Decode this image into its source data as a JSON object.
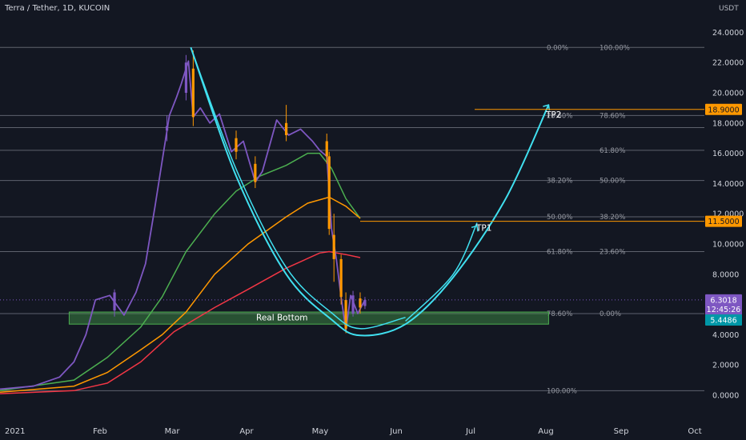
{
  "symbol": "Terra / Tether, 1D, KUCOIN",
  "currency": "USDT",
  "colors": {
    "background": "#131722",
    "candle_up": "#7e57c2",
    "candle_down": "#ff9800",
    "ma_fast": "#4caf50",
    "ma_mid": "#ff9800",
    "ma_slow": "#f23645",
    "arc": "#40e0f0",
    "zone": "#4caf50",
    "tp": "#ff9800",
    "last_price": "#7e57c2",
    "ref_price": "#0097a7"
  },
  "chart_data": {
    "type": "candlestick",
    "ylim": [
      -1,
      25
    ],
    "yticks": [
      "0.0000",
      "2.0000",
      "4.0000",
      "6.0000",
      "8.0000",
      "10.0000",
      "12.0000",
      "14.0000",
      "16.0000",
      "18.0000",
      "20.0000",
      "22.0000",
      "24.0000"
    ],
    "time_labels": [
      "2021",
      "Feb",
      "Mar",
      "Apr",
      "May",
      "Jun",
      "Jul",
      "Aug",
      "Sep",
      "Oct"
    ],
    "price_line": {
      "points": [
        [
          "2021-01-01",
          0.4
        ],
        [
          "2021-01-15",
          0.6
        ],
        [
          "2021-01-26",
          1.2
        ],
        [
          "2021-02-01",
          2.2
        ],
        [
          "2021-02-06",
          4.0
        ],
        [
          "2021-02-10",
          6.3
        ],
        [
          "2021-02-16",
          6.6
        ],
        [
          "2021-02-22",
          5.3
        ],
        [
          "2021-02-27",
          6.8
        ],
        [
          "2021-03-03",
          8.7
        ],
        [
          "2021-03-07",
          12.5
        ],
        [
          "2021-03-10",
          15.5
        ],
        [
          "2021-03-13",
          18.5
        ],
        [
          "2021-03-16",
          19.7
        ],
        [
          "2021-03-18",
          20.6
        ],
        [
          "2021-03-21",
          22.1
        ],
        [
          "2021-03-23",
          18.4
        ],
        [
          "2021-03-26",
          19.0
        ],
        [
          "2021-03-30",
          18.0
        ],
        [
          "2021-04-03",
          18.6
        ],
        [
          "2021-04-08",
          16.1
        ],
        [
          "2021-04-13",
          16.8
        ],
        [
          "2021-04-18",
          14.1
        ],
        [
          "2021-04-21",
          14.8
        ],
        [
          "2021-04-27",
          18.2
        ],
        [
          "2021-05-02",
          17.2
        ],
        [
          "2021-05-07",
          17.6
        ],
        [
          "2021-05-12",
          16.8
        ],
        [
          "2021-05-15",
          16.2
        ],
        [
          "2021-05-18",
          15.8
        ],
        [
          "2021-05-20",
          11.0
        ],
        [
          "2021-05-22",
          9.0
        ],
        [
          "2021-05-24",
          6.5
        ],
        [
          "2021-05-26",
          4.3
        ],
        [
          "2021-05-28",
          6.6
        ],
        [
          "2021-05-31",
          5.4
        ],
        [
          "2021-06-03",
          6.3
        ]
      ]
    },
    "candles": [
      {
        "date": "2021-02-18",
        "open": 5.6,
        "high": 7.0,
        "low": 5.2,
        "close": 6.8
      },
      {
        "date": "2021-03-12",
        "open": 17.5,
        "high": 18.5,
        "low": 16.8,
        "close": 17.8
      },
      {
        "date": "2021-03-20",
        "open": 20.0,
        "high": 22.5,
        "low": 19.5,
        "close": 22.0
      },
      {
        "date": "2021-03-23",
        "open": 21.6,
        "high": 22.8,
        "low": 17.8,
        "close": 18.4
      },
      {
        "date": "2021-04-10",
        "open": 17.0,
        "high": 17.5,
        "low": 15.6,
        "close": 16.1
      },
      {
        "date": "2021-04-18",
        "open": 15.3,
        "high": 15.8,
        "low": 13.7,
        "close": 14.1
      },
      {
        "date": "2021-05-01",
        "open": 18.0,
        "high": 19.2,
        "low": 16.8,
        "close": 17.2
      },
      {
        "date": "2021-05-18",
        "open": 16.8,
        "high": 17.3,
        "low": 15.3,
        "close": 15.8
      },
      {
        "date": "2021-05-19",
        "open": 15.8,
        "high": 16.1,
        "low": 10.6,
        "close": 11.0
      },
      {
        "date": "2021-05-21",
        "open": 10.6,
        "high": 12.0,
        "low": 7.5,
        "close": 9.0
      },
      {
        "date": "2021-05-24",
        "open": 9.0,
        "high": 9.3,
        "low": 6.0,
        "close": 6.5
      },
      {
        "date": "2021-05-26",
        "open": 6.3,
        "high": 6.8,
        "low": 4.1,
        "close": 4.4
      },
      {
        "date": "2021-05-29",
        "open": 5.4,
        "high": 6.9,
        "low": 5.2,
        "close": 6.6
      },
      {
        "date": "2021-06-01",
        "open": 6.4,
        "high": 6.8,
        "low": 5.4,
        "close": 5.8
      },
      {
        "date": "2021-06-03",
        "open": 5.9,
        "high": 6.5,
        "low": 5.7,
        "close": 6.3
      }
    ],
    "moving_averages": [
      {
        "points": [
          [
            "2021-01-01",
            0.3
          ],
          [
            "2021-02-01",
            1.0
          ],
          [
            "2021-02-15",
            2.5
          ],
          [
            "2021-03-01",
            4.5
          ],
          [
            "2021-03-10",
            6.5
          ],
          [
            "2021-03-20",
            9.5
          ],
          [
            "2021-04-01",
            12.0
          ],
          [
            "2021-04-10",
            13.5
          ],
          [
            "2021-04-20",
            14.5
          ],
          [
            "2021-05-01",
            15.2
          ],
          [
            "2021-05-10",
            16.0
          ],
          [
            "2021-05-15",
            16.0
          ],
          [
            "2021-05-20",
            15.0
          ],
          [
            "2021-05-26",
            13.0
          ],
          [
            "2021-06-01",
            11.7
          ]
        ]
      },
      {
        "points": [
          [
            "2021-01-01",
            0.2
          ],
          [
            "2021-02-01",
            0.6
          ],
          [
            "2021-02-15",
            1.5
          ],
          [
            "2021-03-01",
            3.0
          ],
          [
            "2021-03-10",
            4.0
          ],
          [
            "2021-03-20",
            5.5
          ],
          [
            "2021-04-01",
            8.0
          ],
          [
            "2021-04-15",
            10.0
          ],
          [
            "2021-05-01",
            11.8
          ],
          [
            "2021-05-10",
            12.7
          ],
          [
            "2021-05-19",
            13.1
          ],
          [
            "2021-05-26",
            12.5
          ],
          [
            "2021-06-01",
            11.7
          ]
        ]
      },
      {
        "points": [
          [
            "2021-01-01",
            0.1
          ],
          [
            "2021-02-01",
            0.3
          ],
          [
            "2021-02-15",
            0.8
          ],
          [
            "2021-03-01",
            2.2
          ],
          [
            "2021-03-15",
            4.2
          ],
          [
            "2021-04-01",
            5.8
          ],
          [
            "2021-04-15",
            7.0
          ],
          [
            "2021-05-01",
            8.4
          ],
          [
            "2021-05-15",
            9.4
          ],
          [
            "2021-05-19",
            9.5
          ],
          [
            "2021-05-26",
            9.3
          ],
          [
            "2021-06-01",
            9.1
          ]
        ]
      }
    ],
    "fib_levels": [
      {
        "price": 23.0,
        "left": "0.00%",
        "right": "100.00%"
      },
      {
        "price": 18.5,
        "left": "23.60%",
        "right": "78.60%"
      },
      {
        "price": 17.7,
        "left": "",
        "right": ""
      },
      {
        "price": 16.2,
        "left": "",
        "right": "61.80%"
      },
      {
        "price": 14.2,
        "left": "38.20%",
        "right": "50.00%"
      },
      {
        "price": 11.8,
        "left": "50.00%",
        "right": "38.20%"
      },
      {
        "price": 9.5,
        "left": "61.80%",
        "right": "23.60%"
      },
      {
        "price": 5.4,
        "left": "78.60%",
        "right": "0.00%"
      },
      {
        "price": 0.3,
        "left": "100.00%",
        "right": ""
      }
    ],
    "zone": {
      "label": "Real Bottom",
      "top": 5.5,
      "bottom": 4.7,
      "start": "2021-01-30",
      "end": "2021-08-19"
    },
    "targets": [
      {
        "label": "TP1",
        "price": 11.5,
        "tag": "11.5000",
        "from": "2021-06-01"
      },
      {
        "label": "TP2",
        "price": 18.9,
        "tag": "18.9000",
        "from": "2021-07-19"
      }
    ],
    "last_price": {
      "value": "6.3018",
      "countdown": "12:45:26",
      "price": 6.3
    },
    "ref_price": {
      "value": "5.4486",
      "price": 5.45
    },
    "cup_arc": [
      [
        "2021-03-22",
        23.0
      ],
      [
        "2021-04-10",
        14.5
      ],
      [
        "2021-05-01",
        8.0
      ],
      [
        "2021-05-20",
        5.0
      ],
      [
        "2021-06-01",
        3.95
      ],
      [
        "2021-06-20",
        4.7
      ],
      [
        "2021-07-10",
        7.8
      ],
      [
        "2021-08-01",
        13.0
      ],
      [
        "2021-08-19",
        19.2
      ]
    ],
    "up_arrow": [
      [
        "2021-06-20",
        4.7
      ],
      [
        "2021-07-10",
        7.8
      ],
      [
        "2021-07-20",
        11.2
      ]
    ]
  }
}
